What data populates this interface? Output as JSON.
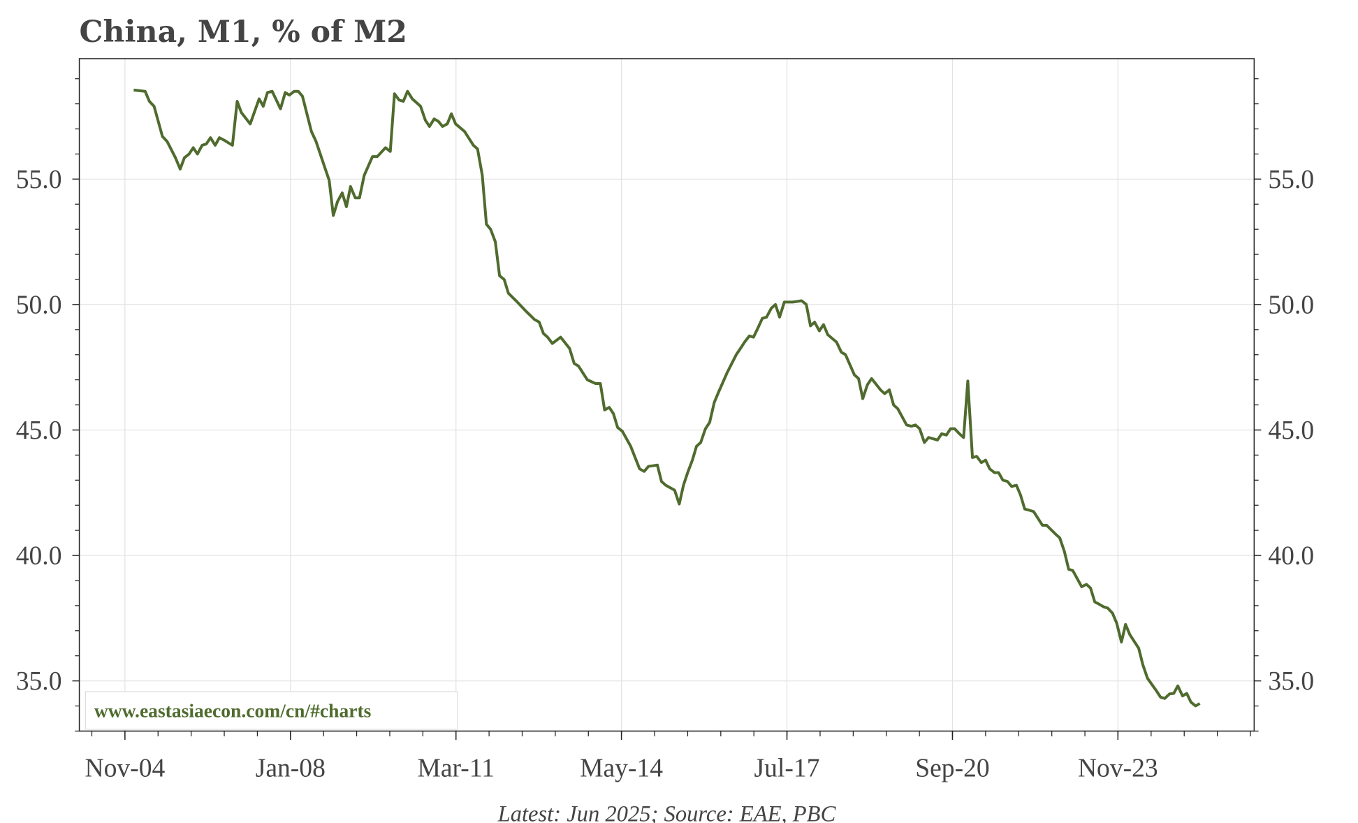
{
  "chart_data": {
    "type": "line",
    "title": "China, M1, % of M2",
    "xlabel": "",
    "ylabel": "",
    "footnote": "Latest: Jun 2025; Source: EAE, PBC",
    "watermark": "www.eastasiaecon.com/cn/#charts",
    "xlim": [
      2003.96,
      2026.44
    ],
    "ylim": [
      33.0,
      59.8
    ],
    "grid": true,
    "x_ticks": [
      {
        "value": 2004.833,
        "label": "Nov-04"
      },
      {
        "value": 2008.0,
        "label": "Jan-08"
      },
      {
        "value": 2011.167,
        "label": "Mar-11"
      },
      {
        "value": 2014.333,
        "label": "May-14"
      },
      {
        "value": 2017.5,
        "label": "Jul-17"
      },
      {
        "value": 2020.667,
        "label": "Sep-20"
      },
      {
        "value": 2023.833,
        "label": "Nov-23"
      }
    ],
    "y_ticks": [
      {
        "value": 35,
        "label": "35.0"
      },
      {
        "value": 40,
        "label": "40.0"
      },
      {
        "value": 45,
        "label": "45.0"
      },
      {
        "value": 50,
        "label": "50.0"
      },
      {
        "value": 55,
        "label": "55.0"
      }
    ],
    "series": [
      {
        "name": "M1 % of M2",
        "color": "#4f6b2e",
        "points": [
          [
            2005.0,
            58.55
          ],
          [
            2005.22,
            58.5
          ],
          [
            2005.3,
            58.1
          ],
          [
            2005.39,
            57.9
          ],
          [
            2005.55,
            56.7
          ],
          [
            2005.64,
            56.5
          ],
          [
            2005.8,
            55.85
          ],
          [
            2005.89,
            55.4
          ],
          [
            2005.97,
            55.85
          ],
          [
            2006.06,
            56.0
          ],
          [
            2006.14,
            56.25
          ],
          [
            2006.22,
            56.0
          ],
          [
            2006.31,
            56.35
          ],
          [
            2006.39,
            56.4
          ],
          [
            2006.47,
            56.65
          ],
          [
            2006.56,
            56.35
          ],
          [
            2006.64,
            56.65
          ],
          [
            2006.73,
            56.55
          ],
          [
            2006.89,
            56.35
          ],
          [
            2006.98,
            58.1
          ],
          [
            2007.06,
            57.65
          ],
          [
            2007.23,
            57.2
          ],
          [
            2007.4,
            58.2
          ],
          [
            2007.48,
            57.9
          ],
          [
            2007.56,
            58.45
          ],
          [
            2007.65,
            58.5
          ],
          [
            2007.81,
            57.8
          ],
          [
            2007.9,
            58.45
          ],
          [
            2007.98,
            58.35
          ],
          [
            2008.07,
            58.5
          ],
          [
            2008.15,
            58.5
          ],
          [
            2008.23,
            58.3
          ],
          [
            2008.4,
            56.9
          ],
          [
            2008.49,
            56.5
          ],
          [
            2008.57,
            56.0
          ],
          [
            2008.74,
            54.95
          ],
          [
            2008.82,
            53.55
          ],
          [
            2008.9,
            54.1
          ],
          [
            2008.99,
            54.45
          ],
          [
            2009.07,
            53.9
          ],
          [
            2009.15,
            54.7
          ],
          [
            2009.24,
            54.25
          ],
          [
            2009.32,
            54.25
          ],
          [
            2009.41,
            55.15
          ],
          [
            2009.57,
            55.9
          ],
          [
            2009.66,
            55.9
          ],
          [
            2009.82,
            56.25
          ],
          [
            2009.91,
            56.1
          ],
          [
            2009.99,
            58.4
          ],
          [
            2010.08,
            58.15
          ],
          [
            2010.16,
            58.1
          ],
          [
            2010.24,
            58.5
          ],
          [
            2010.33,
            58.2
          ],
          [
            2010.49,
            57.9
          ],
          [
            2010.58,
            57.35
          ],
          [
            2010.66,
            57.1
          ],
          [
            2010.75,
            57.4
          ],
          [
            2010.83,
            57.3
          ],
          [
            2010.91,
            57.1
          ],
          [
            2011.0,
            57.2
          ],
          [
            2011.08,
            57.6
          ],
          [
            2011.16,
            57.2
          ],
          [
            2011.33,
            56.9
          ],
          [
            2011.5,
            56.35
          ],
          [
            2011.58,
            56.2
          ],
          [
            2011.67,
            55.15
          ],
          [
            2011.75,
            53.2
          ],
          [
            2011.83,
            53.0
          ],
          [
            2011.92,
            52.5
          ],
          [
            2012.0,
            51.15
          ],
          [
            2012.09,
            51.0
          ],
          [
            2012.17,
            50.45
          ],
          [
            2012.34,
            50.1
          ],
          [
            2012.5,
            49.75
          ],
          [
            2012.67,
            49.4
          ],
          [
            2012.76,
            49.3
          ],
          [
            2012.84,
            48.85
          ],
          [
            2012.92,
            48.7
          ],
          [
            2013.01,
            48.45
          ],
          [
            2013.17,
            48.7
          ],
          [
            2013.34,
            48.25
          ],
          [
            2013.43,
            47.65
          ],
          [
            2013.51,
            47.55
          ],
          [
            2013.68,
            47.0
          ],
          [
            2013.84,
            46.85
          ],
          [
            2013.93,
            46.85
          ],
          [
            2014.01,
            45.8
          ],
          [
            2014.1,
            45.9
          ],
          [
            2014.18,
            45.65
          ],
          [
            2014.26,
            45.1
          ],
          [
            2014.35,
            44.95
          ],
          [
            2014.51,
            44.35
          ],
          [
            2014.68,
            43.45
          ],
          [
            2014.77,
            43.35
          ],
          [
            2014.85,
            43.55
          ],
          [
            2015.02,
            43.6
          ],
          [
            2015.1,
            42.95
          ],
          [
            2015.18,
            42.8
          ],
          [
            2015.35,
            42.6
          ],
          [
            2015.44,
            42.05
          ],
          [
            2015.52,
            42.8
          ],
          [
            2015.6,
            43.3
          ],
          [
            2015.69,
            43.8
          ],
          [
            2015.77,
            44.35
          ],
          [
            2015.85,
            44.5
          ],
          [
            2015.94,
            45.05
          ],
          [
            2016.02,
            45.3
          ],
          [
            2016.11,
            46.1
          ],
          [
            2016.19,
            46.5
          ],
          [
            2016.36,
            47.3
          ],
          [
            2016.53,
            48.0
          ],
          [
            2016.61,
            48.25
          ],
          [
            2016.69,
            48.5
          ],
          [
            2016.78,
            48.75
          ],
          [
            2016.86,
            48.7
          ],
          [
            2016.94,
            49.05
          ],
          [
            2017.03,
            49.45
          ],
          [
            2017.11,
            49.5
          ],
          [
            2017.2,
            49.85
          ],
          [
            2017.28,
            50.0
          ],
          [
            2017.36,
            49.5
          ],
          [
            2017.45,
            50.1
          ],
          [
            2017.61,
            50.1
          ],
          [
            2017.78,
            50.15
          ],
          [
            2017.87,
            50.0
          ],
          [
            2017.95,
            49.15
          ],
          [
            2018.03,
            49.3
          ],
          [
            2018.12,
            48.95
          ],
          [
            2018.2,
            49.2
          ],
          [
            2018.28,
            48.8
          ],
          [
            2018.45,
            48.5
          ],
          [
            2018.54,
            48.1
          ],
          [
            2018.62,
            48.0
          ],
          [
            2018.79,
            47.2
          ],
          [
            2018.87,
            47.05
          ],
          [
            2018.95,
            46.25
          ],
          [
            2019.04,
            46.8
          ],
          [
            2019.12,
            47.05
          ],
          [
            2019.29,
            46.6
          ],
          [
            2019.37,
            46.45
          ],
          [
            2019.46,
            46.6
          ],
          [
            2019.54,
            46.0
          ],
          [
            2019.62,
            45.85
          ],
          [
            2019.79,
            45.2
          ],
          [
            2019.88,
            45.15
          ],
          [
            2019.96,
            45.2
          ],
          [
            2020.04,
            45.05
          ],
          [
            2020.13,
            44.5
          ],
          [
            2020.21,
            44.7
          ],
          [
            2020.38,
            44.6
          ],
          [
            2020.46,
            44.85
          ],
          [
            2020.55,
            44.8
          ],
          [
            2020.63,
            45.05
          ],
          [
            2020.71,
            45.05
          ],
          [
            2020.8,
            44.85
          ],
          [
            2020.88,
            44.7
          ],
          [
            2020.96,
            46.95
          ],
          [
            2021.05,
            43.9
          ],
          [
            2021.13,
            43.95
          ],
          [
            2021.22,
            43.7
          ],
          [
            2021.3,
            43.8
          ],
          [
            2021.38,
            43.45
          ],
          [
            2021.47,
            43.3
          ],
          [
            2021.55,
            43.3
          ],
          [
            2021.63,
            43.0
          ],
          [
            2021.72,
            42.95
          ],
          [
            2021.8,
            42.75
          ],
          [
            2021.89,
            42.8
          ],
          [
            2021.97,
            42.4
          ],
          [
            2022.05,
            41.85
          ],
          [
            2022.14,
            41.8
          ],
          [
            2022.22,
            41.75
          ],
          [
            2022.39,
            41.2
          ],
          [
            2022.47,
            41.2
          ],
          [
            2022.64,
            40.85
          ],
          [
            2022.72,
            40.7
          ],
          [
            2022.81,
            40.15
          ],
          [
            2022.89,
            39.45
          ],
          [
            2022.97,
            39.4
          ],
          [
            2023.14,
            38.75
          ],
          [
            2023.23,
            38.85
          ],
          [
            2023.31,
            38.7
          ],
          [
            2023.39,
            38.15
          ],
          [
            2023.48,
            38.05
          ],
          [
            2023.56,
            37.95
          ],
          [
            2023.64,
            37.9
          ],
          [
            2023.73,
            37.7
          ],
          [
            2023.81,
            37.3
          ],
          [
            2023.9,
            36.55
          ],
          [
            2023.98,
            37.25
          ],
          [
            2024.06,
            36.85
          ],
          [
            2024.23,
            36.3
          ],
          [
            2024.31,
            35.65
          ],
          [
            2024.4,
            35.1
          ],
          [
            2024.57,
            34.6
          ],
          [
            2024.65,
            34.35
          ],
          [
            2024.73,
            34.3
          ],
          [
            2024.82,
            34.48
          ],
          [
            2024.9,
            34.5
          ],
          [
            2024.98,
            34.8
          ],
          [
            2025.07,
            34.4
          ],
          [
            2025.15,
            34.5
          ],
          [
            2025.23,
            34.15
          ],
          [
            2025.32,
            34.0
          ],
          [
            2025.4,
            34.1
          ]
        ]
      }
    ]
  }
}
